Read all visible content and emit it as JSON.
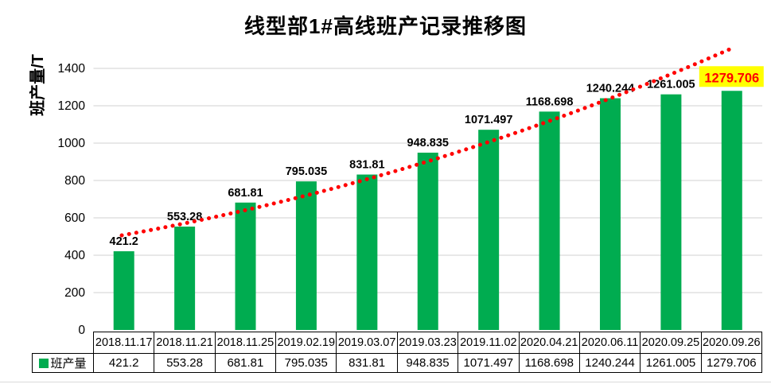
{
  "title": "线型部1#高线班产记录推移图",
  "y_axis": {
    "title": "班产量/T"
  },
  "legend": {
    "label": "班产量"
  },
  "chart_data": {
    "type": "bar",
    "title": "线型部1#高线班产记录推移图",
    "xlabel": "",
    "ylabel": "班产量/T",
    "series_name": "班产量",
    "categories": [
      "2018.11.17",
      "2018.11.21",
      "2018.11.25",
      "2019.02.19",
      "2019.03.07",
      "2019.03.23",
      "2019.11.02",
      "2020.04.21",
      "2020.06.11",
      "2020.09.25",
      "2020.09.26"
    ],
    "values": [
      421.2,
      553.28,
      681.81,
      795.035,
      831.81,
      948.835,
      1071.497,
      1168.698,
      1240.244,
      1261.005,
      1279.706
    ],
    "value_labels": [
      "421.2",
      "553.28",
      "681.81",
      "795.035",
      "831.81",
      "948.835",
      "1071.497",
      "1168.698",
      "1240.244",
      "1261.005",
      "1279.706"
    ],
    "ylim": [
      0,
      1400
    ],
    "yticks": [
      0,
      200,
      400,
      600,
      800,
      1000,
      1200,
      1400
    ],
    "grid": true,
    "legend_position": "table-left",
    "data_table": true,
    "trend_line": "dotted exponential trend",
    "highlight_index": 10,
    "colors": {
      "bar": "#00AC50",
      "trend": "#FF0000",
      "highlight_bg": "#FFFF00",
      "highlight_text": "#FF0000",
      "gridline": "#D9D9D9",
      "label_text": "#000000",
      "table_border": "#000000"
    }
  }
}
